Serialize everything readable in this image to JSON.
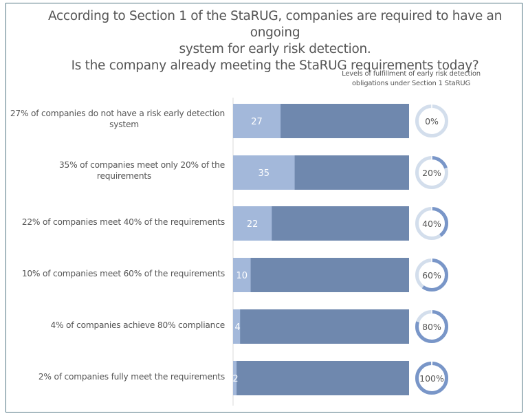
{
  "chart_data": {
    "type": "bar",
    "title_lines": [
      "According to Section 1 of the StaRUG, companies are required to have an ongoing",
      "system for early risk detection.",
      "Is the company already meeting the StaRUG requirements today?"
    ],
    "donut_header_lines": [
      "Levels of fulfillment of early risk detection",
      "obligations under Section 1 StaRUG"
    ],
    "categories": [
      "27% of companies do not have a risk early detection system",
      "35% of companies meet only 20% of the requirements",
      "22% of companies meet 40% of the requirements",
      "10% of companies meet 60% of the requirements",
      "4% of companies achieve 80% compliance",
      "2% of companies fully meet the requirements"
    ],
    "category_lines": [
      [
        "27% of companies do not have a risk early detection",
        "system"
      ],
      [
        "35% of companies meet only 20% of the",
        "requirements"
      ],
      [
        "22% of companies meet 40% of the requirements"
      ],
      [
        "10% of companies meet 60% of the requirements"
      ],
      [
        "4% of companies achieve 80% compliance"
      ],
      [
        "2% of companies fully meet the requirements"
      ]
    ],
    "series": [
      {
        "name": "Share of companies (%)",
        "values": [
          27,
          35,
          22,
          10,
          4,
          2
        ]
      }
    ],
    "value_labels": [
      "27",
      "35",
      "22",
      "10",
      "4",
      "2"
    ],
    "xlim": [
      0,
      100
    ],
    "fulfillment_levels": [
      0,
      20,
      40,
      60,
      80,
      100
    ],
    "fulfillment_labels": [
      "0%",
      "20%",
      "40%",
      "60%",
      "80%",
      "100%"
    ],
    "grid": false,
    "legend": "none"
  },
  "colors": {
    "bar_value": "#a3b8da",
    "bar_rest": "#6f88ae",
    "donut_fill": "#7996c8",
    "donut_track": "#d3deec",
    "axis": "#d8d8d8",
    "frame": "#4f7380"
  }
}
